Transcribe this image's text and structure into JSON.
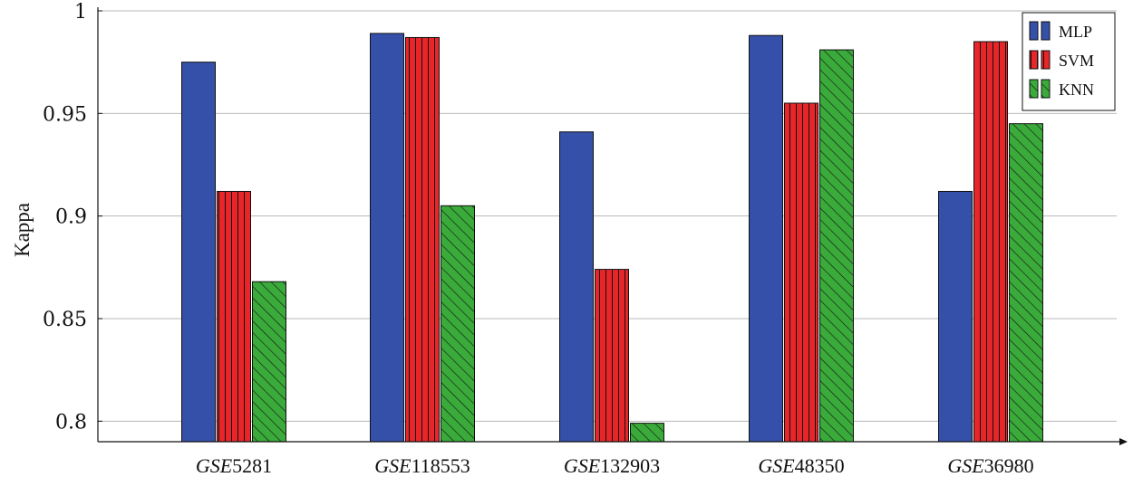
{
  "chart_data": {
    "type": "bar",
    "ylabel": "Kappa",
    "xlabel": "",
    "title": "",
    "ylim": [
      0.79,
      1.0
    ],
    "yticks": [
      0.8,
      0.85,
      0.9,
      0.95,
      1.0
    ],
    "ytick_labels": [
      "0.8",
      "0.85",
      "0.9",
      "0.95",
      "1"
    ],
    "grid": "horizontal",
    "legend_position": "top-right",
    "categories": [
      {
        "prefix": "GSE",
        "number": "5281"
      },
      {
        "prefix": "GSE",
        "number": "118553"
      },
      {
        "prefix": "GSE",
        "number": "132903"
      },
      {
        "prefix": "GSE",
        "number": "48350"
      },
      {
        "prefix": "GSE",
        "number": "36980"
      }
    ],
    "series": [
      {
        "name": "MLP",
        "color": "#3550a8",
        "pattern": "solid",
        "values": [
          0.975,
          0.989,
          0.941,
          0.988,
          0.912
        ]
      },
      {
        "name": "SVM",
        "color": "#e8262a",
        "pattern": "vertical-lines",
        "values": [
          0.912,
          0.987,
          0.874,
          0.955,
          0.985
        ]
      },
      {
        "name": "KNN",
        "color": "#3aaa3a",
        "pattern": "diagonal-lines",
        "values": [
          0.868,
          0.905,
          0.799,
          0.981,
          0.945
        ]
      }
    ]
  }
}
